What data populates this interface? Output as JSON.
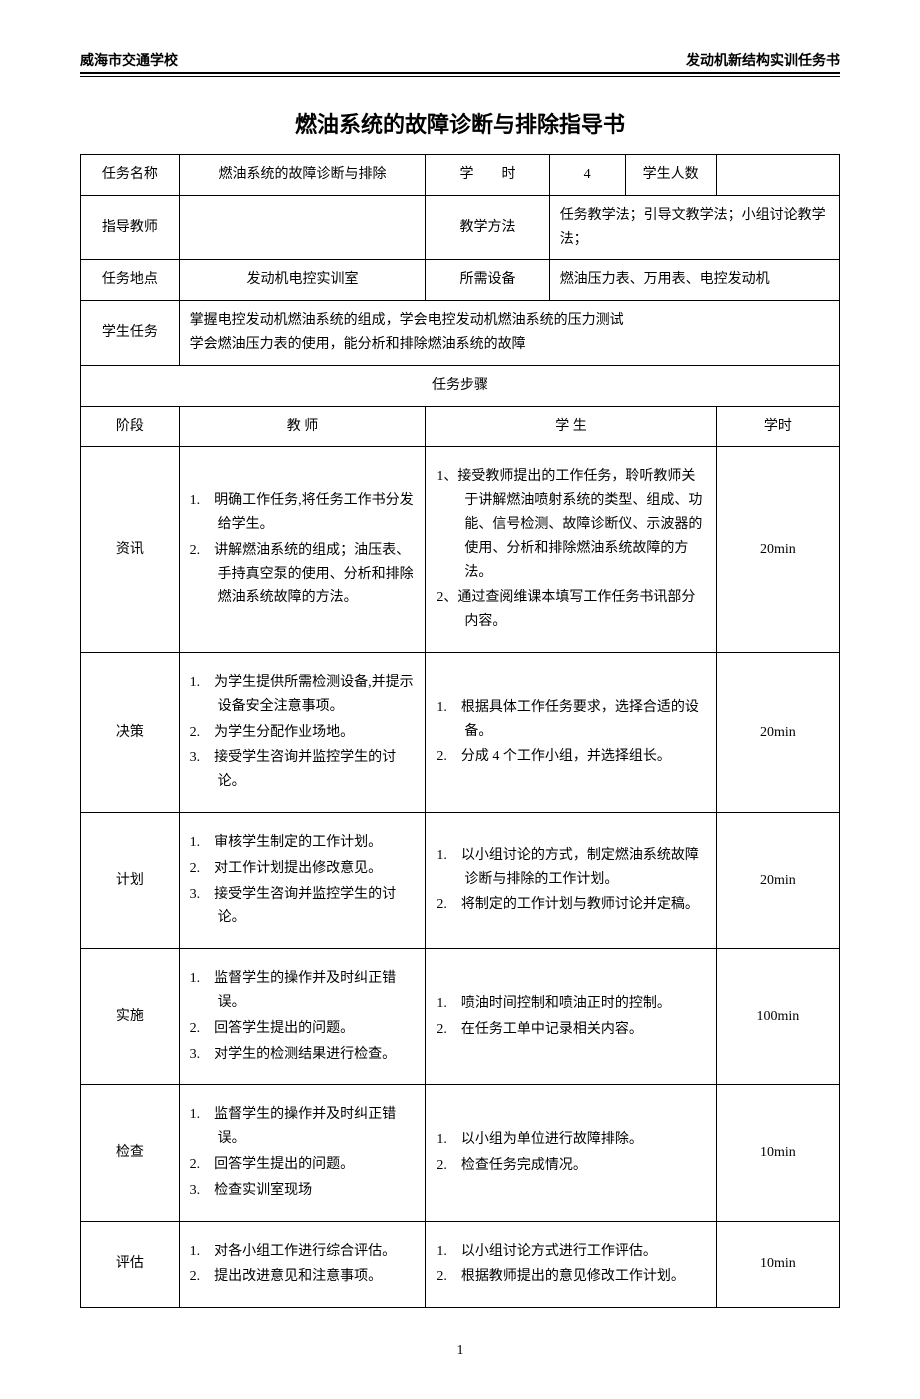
{
  "header": {
    "left": "威海市交通学校",
    "right": "发动机新结构实训任务书"
  },
  "title": "燃油系统的故障诊断与排除指导书",
  "info": {
    "task_name_label": "任务名称",
    "task_name": "燃油系统的故障诊断与排除",
    "hours_label": "学　　时",
    "hours": "4",
    "student_count_label": "学生人数",
    "student_count": "",
    "teacher_label": "指导教师",
    "teacher": "",
    "method_label": "教学方法",
    "method": "任务教学法；引导文教学法；小组讨论教学法；",
    "location_label": "任务地点",
    "location": "发动机电控实训室",
    "equipment_label": "所需设备",
    "equipment": "燃油压力表、万用表、电控发动机",
    "student_task_label": "学生任务",
    "student_task_line1": "掌握电控发动机燃油系统的组成，学会电控发动机燃油系统的压力测试",
    "student_task_line2": "学会燃油压力表的使用，能分析和排除燃油系统的故障"
  },
  "steps_header": "任务步骤",
  "columns": {
    "stage": "阶段",
    "teacher": "教 师",
    "student": "学 生",
    "time": "学时"
  },
  "rows": [
    {
      "stage": "资讯",
      "teacher": [
        "1.　明确工作任务,将任务工作书分发给学生。",
        "2.　讲解燃油系统的组成；油压表、手持真空泵的使用、分析和排除燃油系统故障的方法。"
      ],
      "student": [
        "1、接受教师提出的工作任务，聆听教师关于讲解燃油喷射系统的类型、组成、功能、信号检测、故障诊断仪、示波器的使用、分析和排除燃油系统故障的方法。",
        "2、通过查阅维课本填写工作任务书讯部分内容。"
      ],
      "time": "20min"
    },
    {
      "stage": "决策",
      "teacher": [
        "1.　为学生提供所需检测设备,并提示设备安全注意事项。",
        "2.　为学生分配作业场地。",
        "3.　接受学生咨询并监控学生的讨论。"
      ],
      "student": [
        "1.　根据具体工作任务要求，选择合适的设备。",
        "2.　分成 4 个工作小组，并选择组长。"
      ],
      "time": "20min"
    },
    {
      "stage": "计划",
      "teacher": [
        "1.　审核学生制定的工作计划。",
        "2.　对工作计划提出修改意见。",
        "3.　接受学生咨询并监控学生的讨论。"
      ],
      "student": [
        "1.　以小组讨论的方式，制定燃油系统故障诊断与排除的工作计划。",
        "2.　将制定的工作计划与教师讨论并定稿。"
      ],
      "time": "20min"
    },
    {
      "stage": "实施",
      "teacher": [
        "1.　监督学生的操作并及时纠正错误。",
        "2.　回答学生提出的问题。",
        "3.　对学生的检测结果进行检查。"
      ],
      "student": [
        "1.　喷油时间控制和喷油正时的控制。",
        "2.　在任务工单中记录相关内容。"
      ],
      "time": "100min"
    },
    {
      "stage": "检查",
      "teacher": [
        "1.　监督学生的操作并及时纠正错误。",
        "2.　回答学生提出的问题。",
        "3.　检查实训室现场"
      ],
      "student": [
        "1.　以小组为单位进行故障排除。",
        "2.　检查任务完成情况。"
      ],
      "time": "10min"
    },
    {
      "stage": "评估",
      "teacher": [
        "1.　对各小组工作进行综合评估。",
        "2.　提出改进意见和注意事项。"
      ],
      "student": [
        "1.　以小组讨论方式进行工作评估。",
        "2.　根据教师提出的意见修改工作计划。"
      ],
      "time": "10min"
    }
  ],
  "page_number": "1"
}
